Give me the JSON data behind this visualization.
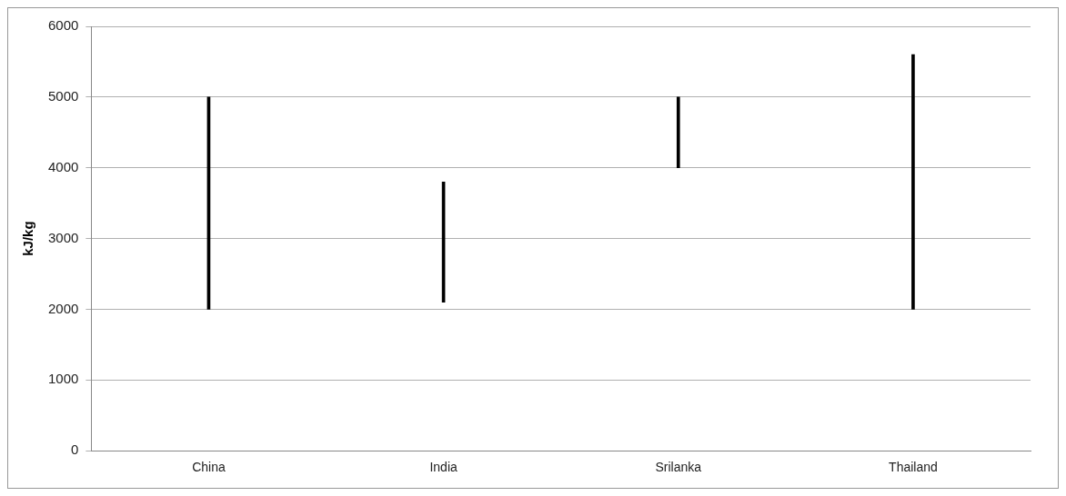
{
  "chart_data": {
    "type": "bar",
    "ylabel": "kJ/kg",
    "categories": [
      "China",
      "India",
      "Srilanka",
      "Thailand"
    ],
    "base": [
      2000,
      2100,
      4000,
      2000
    ],
    "values": [
      3000,
      1700,
      1000,
      3600
    ],
    "color": "#000000",
    "ylim": [
      0,
      6000
    ],
    "yticks": [
      0,
      1000,
      2000,
      3000,
      4000,
      5000,
      6000
    ],
    "grid": "y",
    "legend": false
  }
}
